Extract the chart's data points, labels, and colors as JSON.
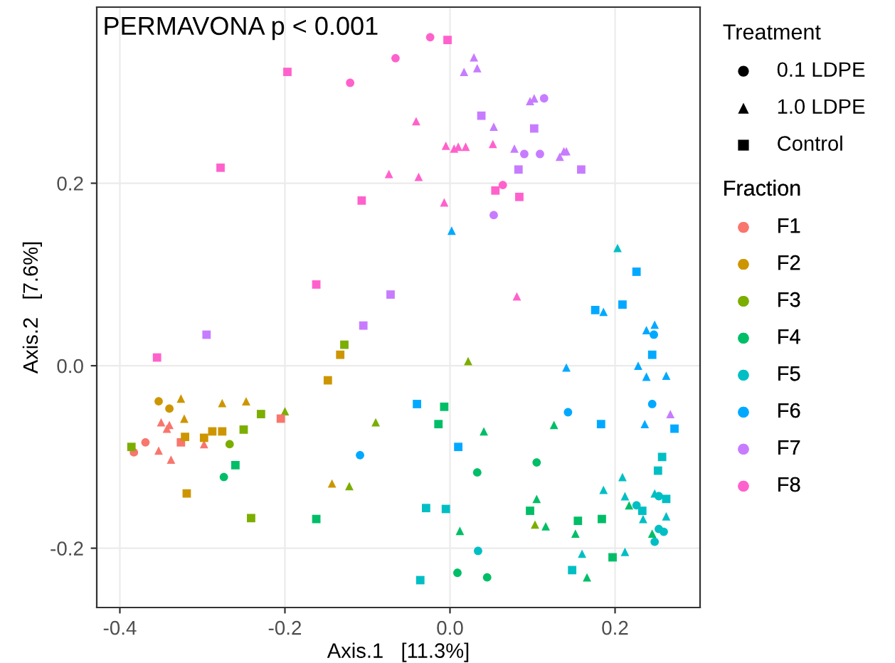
{
  "chart_data": {
    "type": "scatter",
    "xlabel": "Axis.1   [11.3%]",
    "ylabel": "Axis.2   [7.6%]",
    "annotations": [
      "PERMAVONA p < 0.001"
    ],
    "xlim": [
      -0.428,
      0.303
    ],
    "ylim": [
      -0.265,
      0.393
    ],
    "xticks": [
      {
        "value": -0.4,
        "label": "-0.4"
      },
      {
        "value": -0.2,
        "label": "-0.2"
      },
      {
        "value": 0.0,
        "label": "0.0"
      },
      {
        "value": 0.2,
        "label": "0.2"
      }
    ],
    "yticks": [
      {
        "value": -0.2,
        "label": "-0.2"
      },
      {
        "value": 0.0,
        "label": "0.0"
      },
      {
        "value": 0.2,
        "label": "0.2"
      }
    ],
    "grid": true,
    "legend": "right",
    "legend_title": [
      "Treatment",
      "Fraction"
    ],
    "series": [
      {
        "name": "0.1 LDPE",
        "marker": "circle",
        "color": "#000000",
        "x": [
          -0.383,
          -0.369,
          -0.353,
          -0.34,
          -0.267,
          0.033,
          0.105,
          0.009,
          0.045,
          -0.274,
          0.253,
          0.226,
          0.253,
          0.259,
          0.248,
          0.034,
          0.247,
          0.245,
          0.143,
          -0.109,
          0.114,
          0.09,
          0.109,
          0.053,
          -0.121,
          -0.066,
          -0.024,
          0.064
        ],
        "values": [
          -0.095,
          -0.084,
          -0.039,
          -0.047,
          -0.086,
          -0.117,
          -0.106,
          -0.227,
          -0.232,
          -0.122,
          -0.143,
          -0.153,
          -0.179,
          -0.182,
          -0.193,
          -0.203,
          0.034,
          -0.042,
          -0.051,
          -0.098,
          0.293,
          0.232,
          0.232,
          0.165,
          0.31,
          0.337,
          0.36,
          0.198
        ],
        "colors": [
          "#F8766D",
          "#F8766D",
          "#CD9600",
          "#CD9600",
          "#7CAE00",
          "#00BE67",
          "#00BE67",
          "#00BE67",
          "#00BE67",
          "#00BE67",
          "#00BFC4",
          "#00BFC4",
          "#00BFC4",
          "#00BFC4",
          "#00BFC4",
          "#00BFC4",
          "#00A9FF",
          "#00A9FF",
          "#00A9FF",
          "#00A9FF",
          "#C77CFF",
          "#C77CFF",
          "#C77CFF",
          "#C77CFF",
          "#FF61CC",
          "#FF61CC",
          "#FF61CC",
          "#FF61CC"
        ]
      },
      {
        "name": "1.0 LDPE",
        "marker": "triangle",
        "color": "#000000",
        "x": [
          -0.35,
          -0.34,
          -0.343,
          -0.353,
          -0.338,
          -0.298,
          -0.322,
          -0.276,
          -0.247,
          -0.143,
          -0.326,
          -0.2,
          -0.09,
          -0.122,
          0.022,
          0.103,
          0.041,
          0.126,
          0.105,
          0.116,
          0.012,
          0.152,
          0.245,
          0.166,
          0.217,
          0.203,
          0.209,
          0.186,
          0.212,
          0.248,
          0.234,
          0.262,
          0.16,
          0.212,
          0.002,
          0.186,
          0.248,
          0.238,
          0.141,
          0.228,
          0.238,
          0.262,
          0.236,
          0.029,
          0.017,
          0.033,
          0.097,
          0.102,
          0.053,
          0.078,
          0.133,
          0.138,
          0.141,
          0.267,
          -0.074,
          -0.041,
          -0.005,
          0.005,
          0.01,
          0.019,
          0.052,
          -0.038,
          -0.007,
          0.081
        ],
        "values": [
          -0.062,
          -0.065,
          -0.069,
          -0.093,
          -0.103,
          -0.086,
          -0.058,
          -0.041,
          -0.039,
          -0.129,
          -0.036,
          -0.05,
          -0.062,
          -0.132,
          0.005,
          -0.174,
          -0.072,
          -0.065,
          -0.146,
          -0.176,
          -0.181,
          -0.184,
          -0.184,
          -0.232,
          -0.153,
          0.129,
          -0.122,
          -0.136,
          -0.143,
          -0.14,
          -0.168,
          -0.165,
          -0.206,
          -0.204,
          0.148,
          0.059,
          0.045,
          0.039,
          -0.002,
          0.0,
          -0.012,
          -0.011,
          -0.064,
          0.338,
          0.322,
          0.326,
          0.29,
          0.293,
          0.262,
          0.238,
          0.229,
          0.235,
          0.235,
          -0.053,
          0.21,
          0.268,
          0.241,
          0.238,
          0.24,
          0.24,
          0.243,
          0.207,
          0.179,
          0.076
        ],
        "colors": [
          "#F8766D",
          "#F8766D",
          "#F8766D",
          "#F8766D",
          "#F8766D",
          "#F8766D",
          "#CD9600",
          "#CD9600",
          "#CD9600",
          "#CD9600",
          "#CD9600",
          "#7CAE00",
          "#7CAE00",
          "#7CAE00",
          "#7CAE00",
          "#7CAE00",
          "#00BE67",
          "#00BE67",
          "#00BE67",
          "#00BE67",
          "#00BE67",
          "#00BE67",
          "#00BE67",
          "#00BE67",
          "#00BE67",
          "#00BFC4",
          "#00BFC4",
          "#00BFC4",
          "#00BFC4",
          "#00BFC4",
          "#00BFC4",
          "#00BFC4",
          "#00BFC4",
          "#00BFC4",
          "#00A9FF",
          "#00A9FF",
          "#00A9FF",
          "#00A9FF",
          "#00A9FF",
          "#00A9FF",
          "#00A9FF",
          "#00A9FF",
          "#00A9FF",
          "#C77CFF",
          "#C77CFF",
          "#C77CFF",
          "#C77CFF",
          "#C77CFF",
          "#C77CFF",
          "#C77CFF",
          "#C77CFF",
          "#C77CFF",
          "#C77CFF",
          "#C77CFF",
          "#FF61CC",
          "#FF61CC",
          "#FF61CC",
          "#FF61CC",
          "#FF61CC",
          "#FF61CC",
          "#FF61CC",
          "#FF61CC",
          "#FF61CC",
          "#FF61CC"
        ]
      },
      {
        "name": "Control",
        "marker": "square",
        "color": "#000000",
        "x": [
          -0.326,
          -0.205,
          -0.133,
          -0.148,
          -0.321,
          -0.288,
          -0.276,
          -0.298,
          -0.319,
          -0.128,
          -0.229,
          -0.25,
          -0.386,
          -0.241,
          -0.007,
          -0.014,
          0.097,
          0.155,
          0.184,
          0.197,
          -0.26,
          -0.162,
          0.257,
          0.252,
          0.262,
          0.233,
          -0.029,
          -0.005,
          0.148,
          -0.036,
          0.226,
          0.176,
          0.209,
          0.245,
          -0.04,
          0.01,
          0.183,
          0.272,
          0.038,
          0.102,
          0.083,
          0.159,
          -0.072,
          -0.295,
          -0.105,
          -0.197,
          -0.278,
          -0.107,
          -0.003,
          0.055,
          0.084,
          -0.162,
          -0.355
        ],
        "values": [
          -0.084,
          -0.058,
          0.012,
          -0.016,
          -0.078,
          -0.072,
          -0.072,
          -0.079,
          -0.14,
          0.023,
          -0.053,
          -0.07,
          -0.089,
          -0.167,
          -0.045,
          -0.064,
          -0.159,
          -0.17,
          -0.168,
          -0.21,
          -0.109,
          -0.168,
          -0.1,
          -0.115,
          -0.146,
          -0.159,
          -0.156,
          -0.157,
          -0.224,
          -0.235,
          0.103,
          0.061,
          0.067,
          0.012,
          -0.042,
          -0.089,
          -0.064,
          -0.069,
          0.274,
          0.26,
          0.215,
          0.215,
          0.078,
          0.034,
          0.044,
          0.322,
          0.217,
          0.181,
          0.357,
          0.192,
          0.185,
          0.089,
          0.009
        ],
        "colors": [
          "#F8766D",
          "#F8766D",
          "#CD9600",
          "#CD9600",
          "#CD9600",
          "#CD9600",
          "#CD9600",
          "#CD9600",
          "#CD9600",
          "#7CAE00",
          "#7CAE00",
          "#7CAE00",
          "#7CAE00",
          "#7CAE00",
          "#00BE67",
          "#00BE67",
          "#00BE67",
          "#00BE67",
          "#00BE67",
          "#00BE67",
          "#00BE67",
          "#00BE67",
          "#00BFC4",
          "#00BFC4",
          "#00BFC4",
          "#00BFC4",
          "#00BFC4",
          "#00BFC4",
          "#00BFC4",
          "#00BFC4",
          "#00A9FF",
          "#00A9FF",
          "#00A9FF",
          "#00A9FF",
          "#00A9FF",
          "#00A9FF",
          "#00A9FF",
          "#00A9FF",
          "#C77CFF",
          "#C77CFF",
          "#C77CFF",
          "#C77CFF",
          "#C77CFF",
          "#C77CFF",
          "#C77CFF",
          "#FF61CC",
          "#FF61CC",
          "#FF61CC",
          "#FF61CC",
          "#FF61CC",
          "#FF61CC",
          "#FF61CC",
          "#FF61CC"
        ]
      },
      {
        "name": "F1",
        "marker": "circle",
        "color": "#F8766D"
      },
      {
        "name": "F2",
        "marker": "circle",
        "color": "#CD9600"
      },
      {
        "name": "F3",
        "marker": "circle",
        "color": "#7CAE00"
      },
      {
        "name": "F4",
        "marker": "circle",
        "color": "#00BE67"
      },
      {
        "name": "F5",
        "marker": "circle",
        "color": "#00BFC4"
      },
      {
        "name": "F6",
        "marker": "circle",
        "color": "#00A9FF"
      },
      {
        "name": "F7",
        "marker": "circle",
        "color": "#C77CFF"
      },
      {
        "name": "F8",
        "marker": "circle",
        "color": "#FF61CC"
      }
    ]
  }
}
